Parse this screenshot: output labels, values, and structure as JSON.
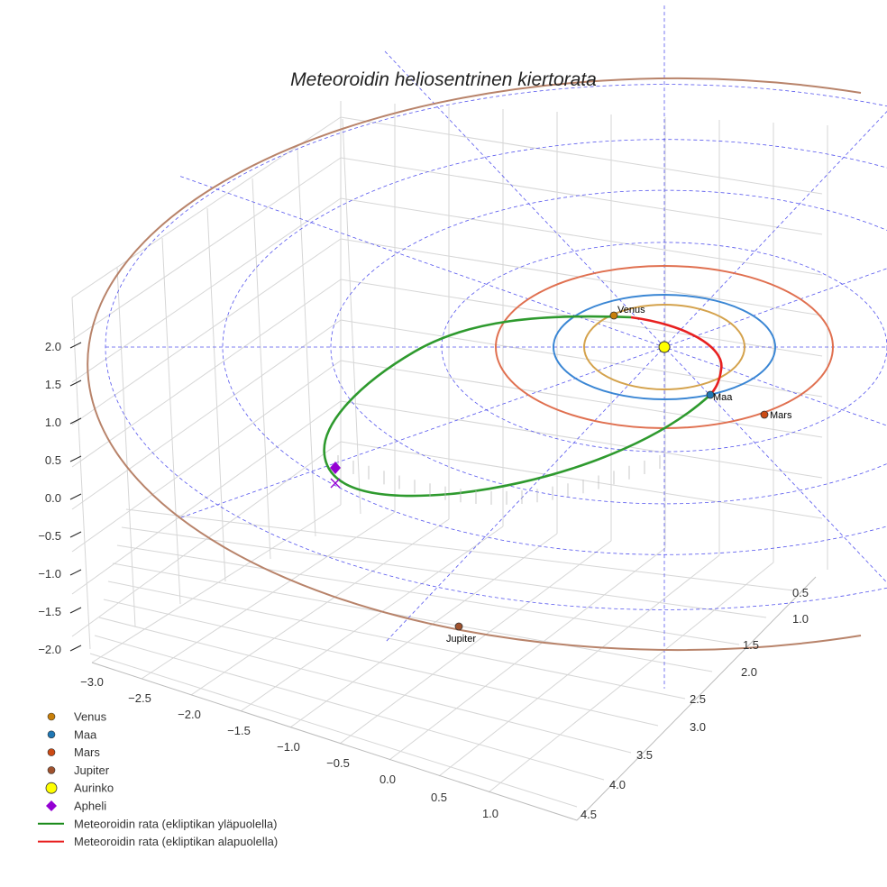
{
  "chart_data": {
    "type": "scatter3d",
    "title": "Meteoroidin heliosentrinen kiertorata",
    "xlabel": "",
    "ylabel": "",
    "zlabel": "",
    "x_ticks": [
      "−3.0",
      "−2.5",
      "−2.0",
      "−1.5",
      "−1.0",
      "−0.5",
      "0.0",
      "0.5",
      "1.0"
    ],
    "y_ticks": [
      "0.5",
      "1.0",
      "1.5",
      "2.0",
      "2.5",
      "3.0",
      "3.5",
      "4.0",
      "4.5"
    ],
    "z_ticks": [
      "2.0",
      "1.5",
      "1.0",
      "0.5",
      "0.0",
      "−0.5",
      "−1.0",
      "−1.5",
      "−2.0"
    ],
    "grid": true,
    "orbits_au": [
      {
        "name": "Venus",
        "radius": 0.72,
        "color": "#d4a24c"
      },
      {
        "name": "Maa",
        "radius": 1.0,
        "color": "#3a86d4"
      },
      {
        "name": "Mars",
        "radius": 1.52,
        "color": "#e07050"
      },
      {
        "name": "Jupiter",
        "radius": 5.2,
        "color": "#b8836a"
      }
    ],
    "points": [
      {
        "name": "Venus",
        "label": "Venus",
        "color": "#c87f0a"
      },
      {
        "name": "Maa",
        "label": "Maa",
        "color": "#1f77b4"
      },
      {
        "name": "Mars",
        "label": "Mars",
        "color": "#cc4a14"
      },
      {
        "name": "Jupiter",
        "label": "Jupiter",
        "color": "#a0522d"
      },
      {
        "name": "Aurinko",
        "label": "",
        "color": "#ffff00"
      }
    ],
    "legend": {
      "placement": "lower-left",
      "entries": [
        {
          "label": "Venus",
          "marker": "circle",
          "color": "#c87f0a"
        },
        {
          "label": "Maa",
          "marker": "circle",
          "color": "#1f77b4"
        },
        {
          "label": "Mars",
          "marker": "circle",
          "color": "#cc4a14"
        },
        {
          "label": "Jupiter",
          "marker": "circle",
          "color": "#a0522d"
        },
        {
          "label": "Aurinko",
          "marker": "big-circle",
          "color": "#ffff00"
        },
        {
          "label": "Apheli",
          "marker": "diamond",
          "color": "#9400d3"
        },
        {
          "label": "Meteoroidin rata (ekliptikan yläpuolella)",
          "marker": "line",
          "color": "#1a8a1a"
        },
        {
          "label": "Meteoroidin rata (ekliptikan alapuolella)",
          "marker": "line",
          "color": "#e82020"
        }
      ]
    }
  }
}
